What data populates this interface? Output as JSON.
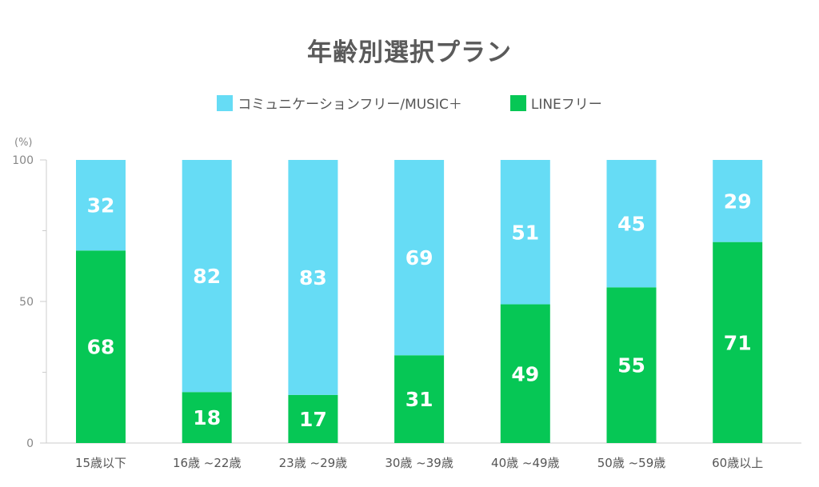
{
  "chart_data": {
    "type": "bar",
    "stacked": true,
    "title": "年齢別選択プラン",
    "unit_label": "(%)",
    "categories": [
      "15歳以下",
      "16歳 ~22歳",
      "23歳 ~29歳",
      "30歳 ~39歳",
      "40歳 ~49歳",
      "50歳 ~59歳",
      "60歳以上"
    ],
    "series": [
      {
        "name": "LINEフリー",
        "color": "#06c755",
        "values": [
          68,
          18,
          17,
          31,
          49,
          55,
          71
        ]
      },
      {
        "name": "コミュニケーションフリー/MUSIC＋",
        "color": "#66dcf5",
        "values": [
          32,
          82,
          83,
          69,
          51,
          45,
          29
        ]
      }
    ],
    "legend_order": [
      1,
      0
    ],
    "legend_position": "top-center",
    "ylim": [
      0,
      100
    ],
    "yticks": [
      0,
      50,
      100
    ],
    "minor_yticks": [
      25,
      75
    ],
    "grid": false,
    "data_label_color": "#ffffff",
    "axis_color": "#cccccc",
    "tick_label_color": "#888888"
  }
}
